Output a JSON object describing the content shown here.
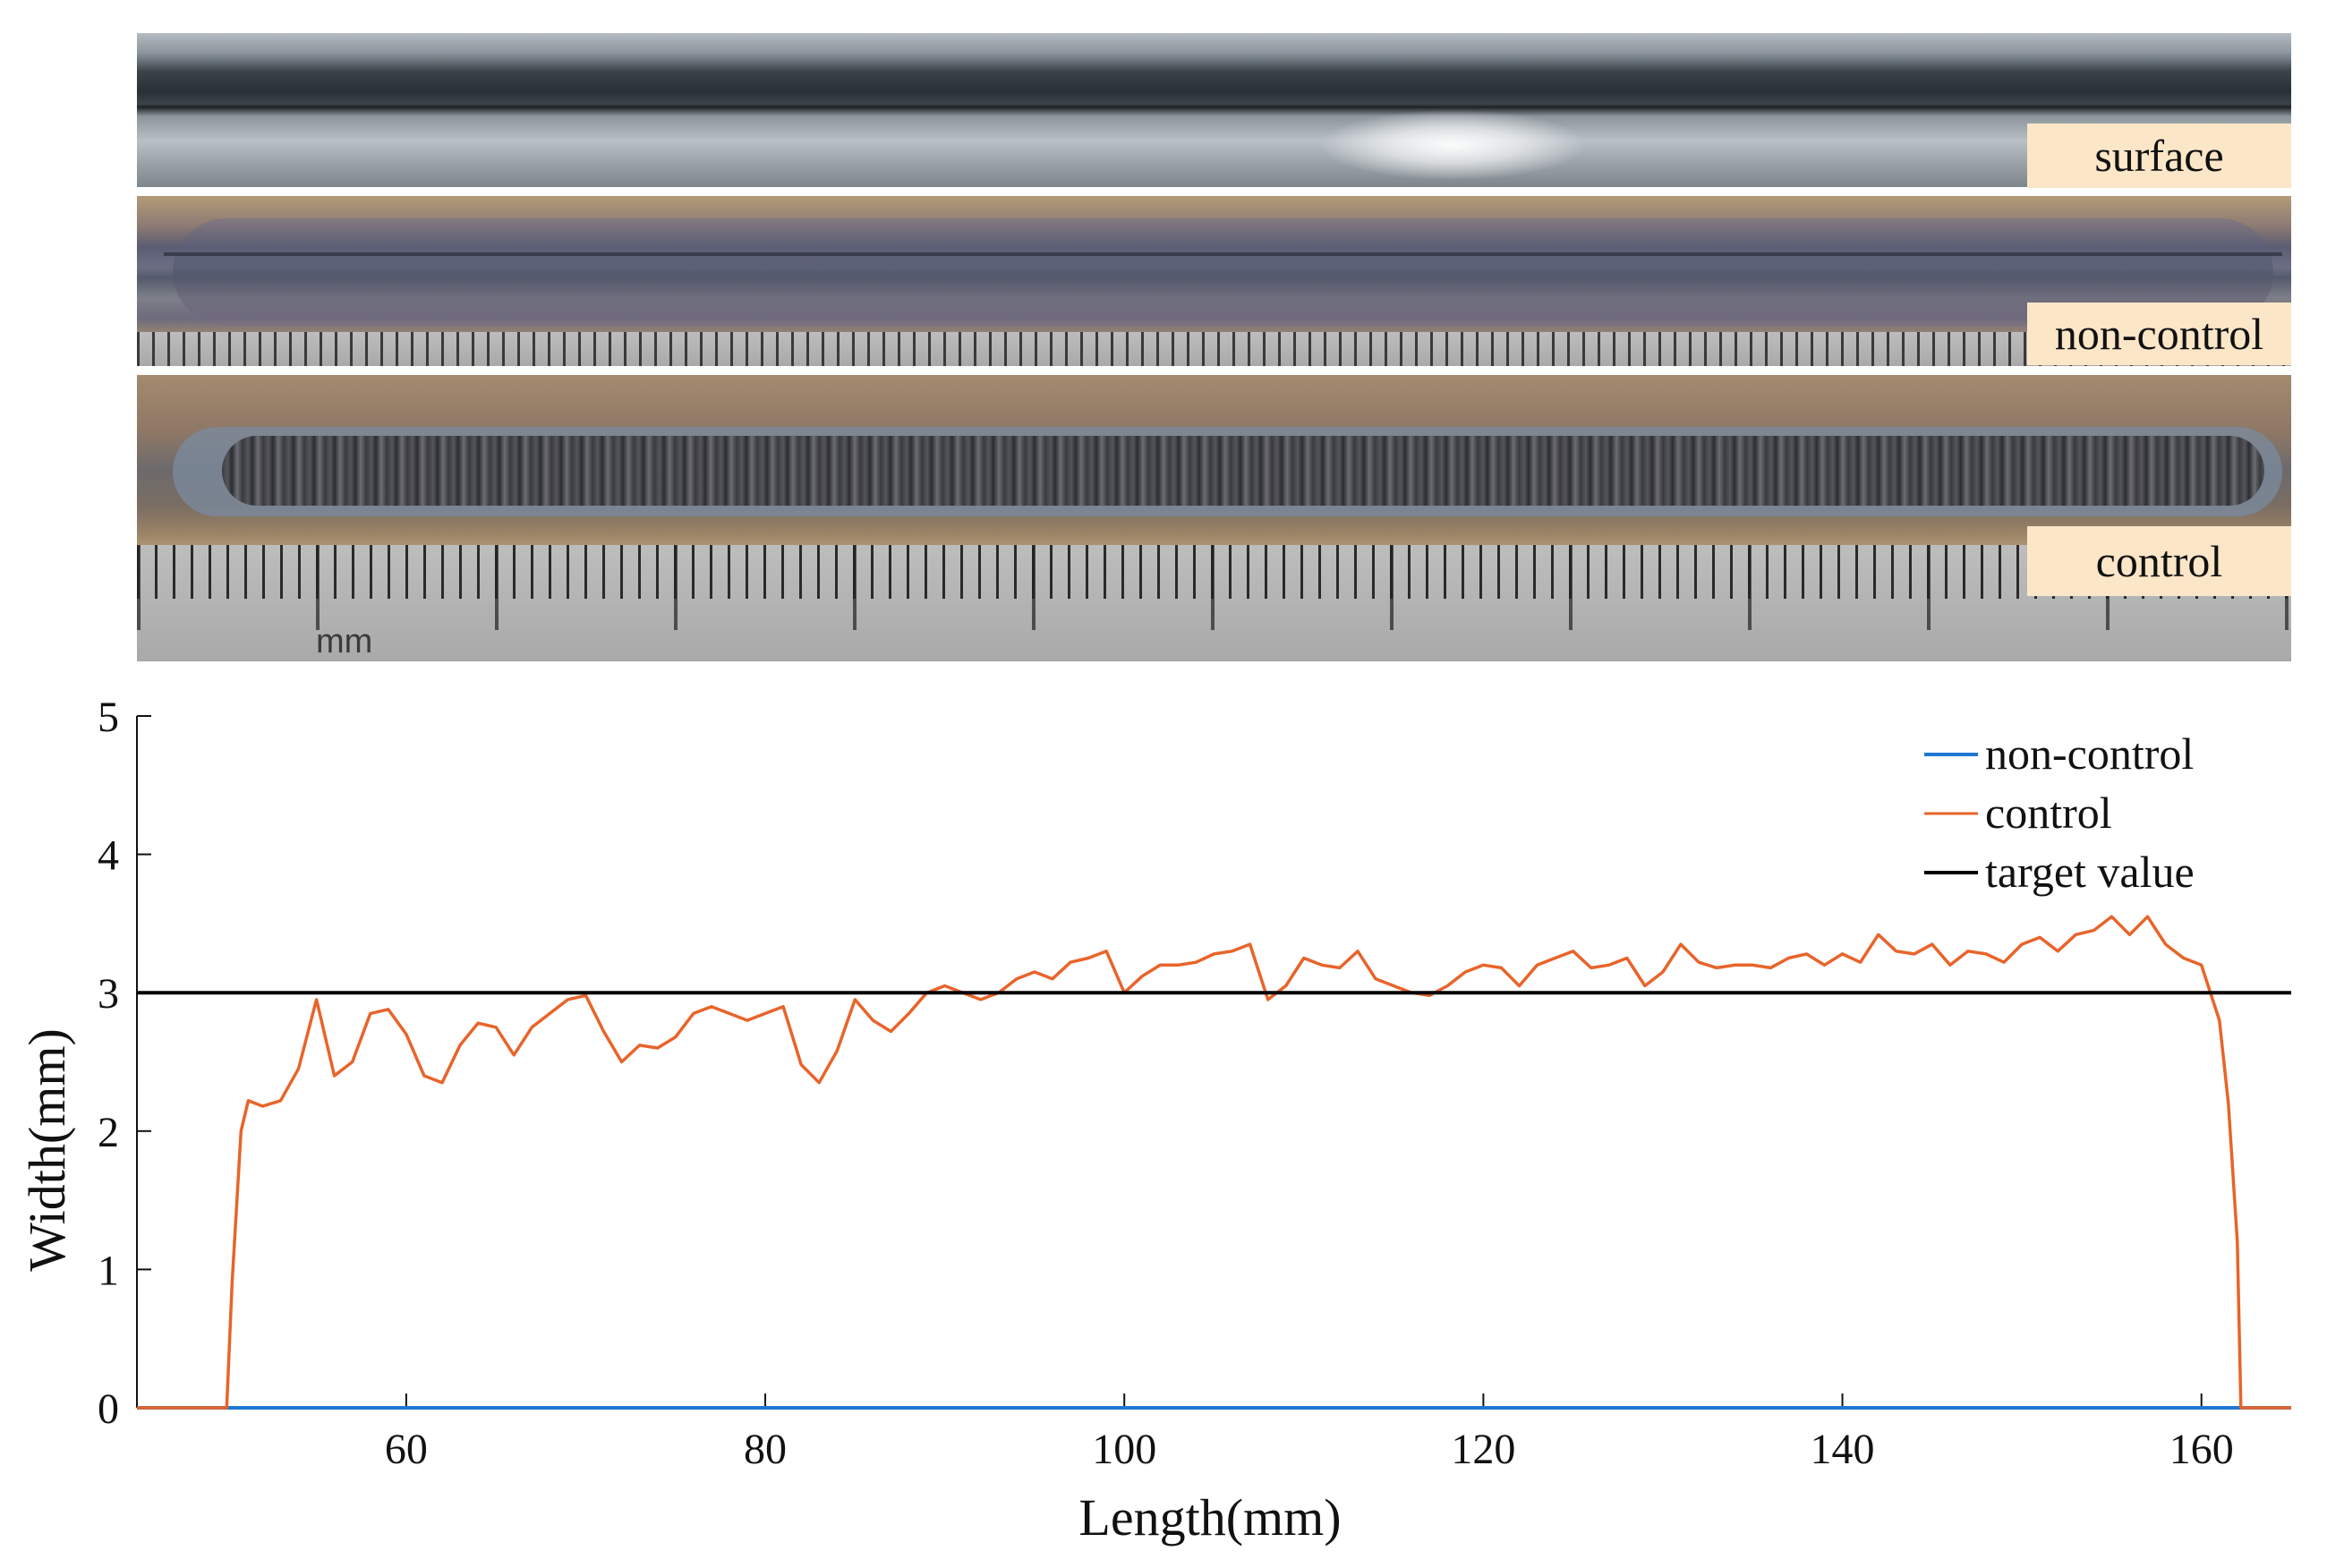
{
  "photos": {
    "surface_label": "surface",
    "noncontrol_label": "non-control",
    "control_label": "control",
    "ruler_unit": "mm"
  },
  "chart_data": {
    "type": "line",
    "xlabel": "Length(mm)",
    "ylabel": "Width(mm)",
    "xlim": [
      45,
      165
    ],
    "ylim": [
      0,
      5
    ],
    "xticks": [
      60,
      80,
      100,
      120,
      140,
      160
    ],
    "yticks": [
      0,
      1,
      2,
      3,
      4,
      5
    ],
    "grid": false,
    "legend_position": "top-right",
    "series": [
      {
        "name": "non-control",
        "color": "#1f77d4",
        "x": [
          45,
          165
        ],
        "y": [
          0,
          0
        ]
      },
      {
        "name": "control",
        "color": "#e8642a",
        "x": [
          45,
          50,
          50.3,
          50.8,
          51.2,
          52,
          53,
          54,
          55,
          56,
          57,
          58,
          59,
          60,
          61,
          62,
          63,
          64,
          65,
          66,
          67,
          68,
          69,
          70,
          71,
          72,
          73,
          74,
          75,
          76,
          77,
          78,
          79,
          80,
          81,
          82,
          83,
          84,
          85,
          86,
          87,
          88,
          89,
          90,
          91,
          92,
          93,
          94,
          95,
          96,
          97,
          98,
          99,
          100,
          101,
          102,
          103,
          104,
          105,
          106,
          107,
          108,
          109,
          110,
          111,
          112,
          113,
          114,
          115,
          116,
          117,
          118,
          119,
          120,
          121,
          122,
          123,
          124,
          125,
          126,
          127,
          128,
          129,
          130,
          131,
          132,
          133,
          134,
          135,
          136,
          137,
          138,
          139,
          140,
          141,
          142,
          143,
          144,
          145,
          146,
          147,
          148,
          149,
          150,
          151,
          152,
          153,
          154,
          155,
          156,
          157,
          158,
          159,
          160,
          160.5,
          161,
          161.5,
          162,
          162.2,
          165
        ],
        "y": [
          0,
          0,
          0.9,
          2.0,
          2.22,
          2.18,
          2.22,
          2.45,
          2.95,
          2.4,
          2.5,
          2.85,
          2.88,
          2.7,
          2.4,
          2.35,
          2.62,
          2.78,
          2.75,
          2.55,
          2.75,
          2.85,
          2.95,
          2.98,
          2.72,
          2.5,
          2.62,
          2.6,
          2.68,
          2.85,
          2.9,
          2.85,
          2.8,
          2.85,
          2.9,
          2.48,
          2.35,
          2.58,
          2.95,
          2.8,
          2.72,
          2.85,
          3.0,
          3.05,
          3.0,
          2.95,
          3.0,
          3.1,
          3.15,
          3.1,
          3.22,
          3.25,
          3.3,
          3.0,
          3.12,
          3.2,
          3.2,
          3.22,
          3.28,
          3.3,
          3.35,
          2.95,
          3.05,
          3.25,
          3.2,
          3.18,
          3.3,
          3.1,
          3.05,
          3.0,
          2.98,
          3.05,
          3.15,
          3.2,
          3.18,
          3.05,
          3.2,
          3.25,
          3.3,
          3.18,
          3.2,
          3.25,
          3.05,
          3.15,
          3.35,
          3.22,
          3.18,
          3.2,
          3.2,
          3.18,
          3.25,
          3.28,
          3.2,
          3.28,
          3.22,
          3.42,
          3.3,
          3.28,
          3.35,
          3.2,
          3.3,
          3.28,
          3.22,
          3.35,
          3.4,
          3.3,
          3.42,
          3.45,
          3.55,
          3.42,
          3.55,
          3.35,
          3.25,
          3.2,
          3.0,
          2.8,
          2.2,
          1.2,
          0,
          0
        ]
      },
      {
        "name": "target value",
        "color": "#000000",
        "x": [
          45,
          165
        ],
        "y": [
          3,
          3
        ]
      }
    ]
  }
}
